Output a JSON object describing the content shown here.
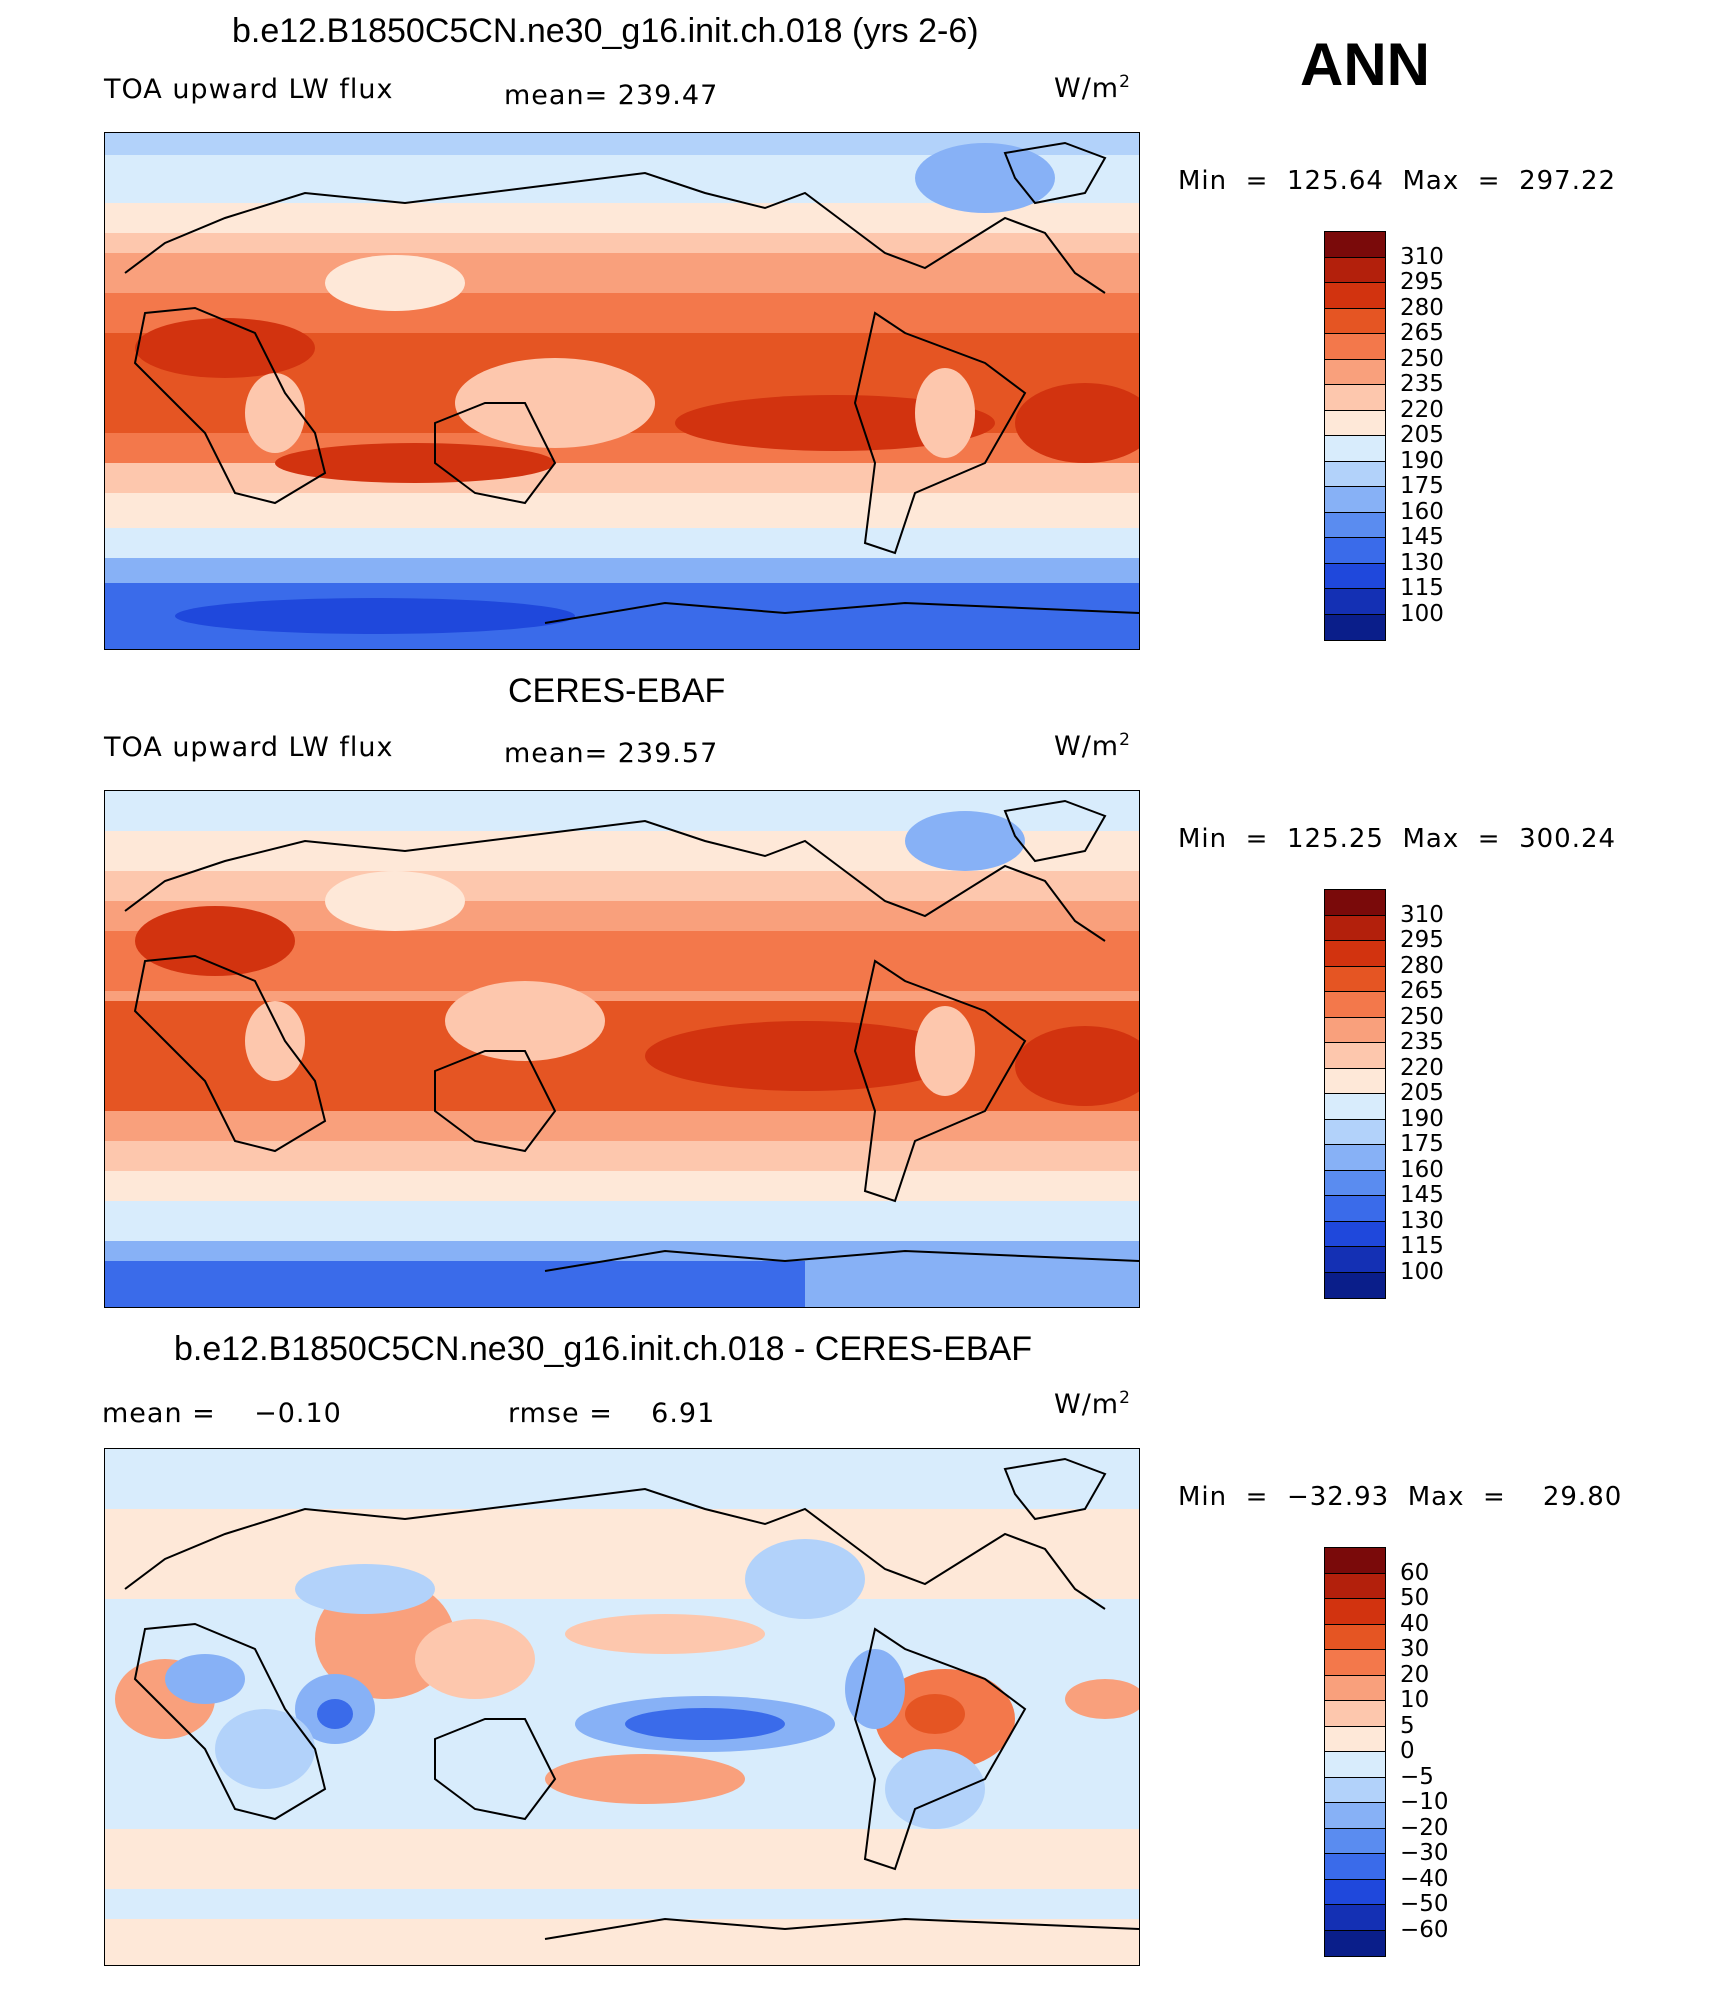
{
  "season": "ANN",
  "panels": [
    {
      "title": "b.e12.B1850C5CN.ne30_g16.init.ch.018 (yrs 2-6)",
      "left_label": "TOA upward LW flux",
      "stat_label": "mean=  239.47",
      "units": "W/m",
      "units_sup": "2",
      "minmax": "Min  =  125.64  Max  =  297.22",
      "colorbar": {
        "colors": [
          "#7a0a0a",
          "#b3200c",
          "#d2330f",
          "#e55523",
          "#f3784b",
          "#f9a07c",
          "#fdc7ad",
          "#fee8d8",
          "#d8ecfc",
          "#b2d2fa",
          "#87b1f6",
          "#5a8cf0",
          "#3a6bea",
          "#1f48dc",
          "#1430b4",
          "#0a1e8a"
        ],
        "ticks": [
          "310",
          "295",
          "280",
          "265",
          "250",
          "235",
          "220",
          "205",
          "190",
          "175",
          "160",
          "145",
          "130",
          "115",
          "100"
        ]
      }
    },
    {
      "title": "CERES-EBAF",
      "left_label": "TOA upward LW flux",
      "stat_label": "mean=  239.57",
      "units": "W/m",
      "units_sup": "2",
      "minmax": "Min  =  125.25  Max  =  300.24",
      "colorbar": {
        "colors": [
          "#7a0a0a",
          "#b3200c",
          "#d2330f",
          "#e55523",
          "#f3784b",
          "#f9a07c",
          "#fdc7ad",
          "#fee8d8",
          "#d8ecfc",
          "#b2d2fa",
          "#87b1f6",
          "#5a8cf0",
          "#3a6bea",
          "#1f48dc",
          "#1430b4",
          "#0a1e8a"
        ],
        "ticks": [
          "310",
          "295",
          "280",
          "265",
          "250",
          "235",
          "220",
          "205",
          "190",
          "175",
          "160",
          "145",
          "130",
          "115",
          "100"
        ]
      }
    },
    {
      "title": "b.e12.B1850C5CN.ne30_g16.init.ch.018 - CERES-EBAF",
      "left_label": "mean =    −0.10",
      "stat_label": "rmse =    6.91",
      "units": "W/m",
      "units_sup": "2",
      "minmax": "Min  =  −32.93  Max  =    29.80",
      "colorbar": {
        "colors": [
          "#7a0a0a",
          "#b3200c",
          "#d2330f",
          "#e55523",
          "#f3784b",
          "#f9a07c",
          "#fdc7ad",
          "#fee8d8",
          "#d8ecfc",
          "#b2d2fa",
          "#87b1f6",
          "#5a8cf0",
          "#3a6bea",
          "#1f48dc",
          "#1430b4",
          "#0a1e8a"
        ],
        "ticks": [
          "60",
          "50",
          "40",
          "30",
          "20",
          "10",
          "5",
          "0",
          "−5",
          "−10",
          "−20",
          "−30",
          "−40",
          "−50",
          "−60"
        ]
      }
    }
  ]
}
